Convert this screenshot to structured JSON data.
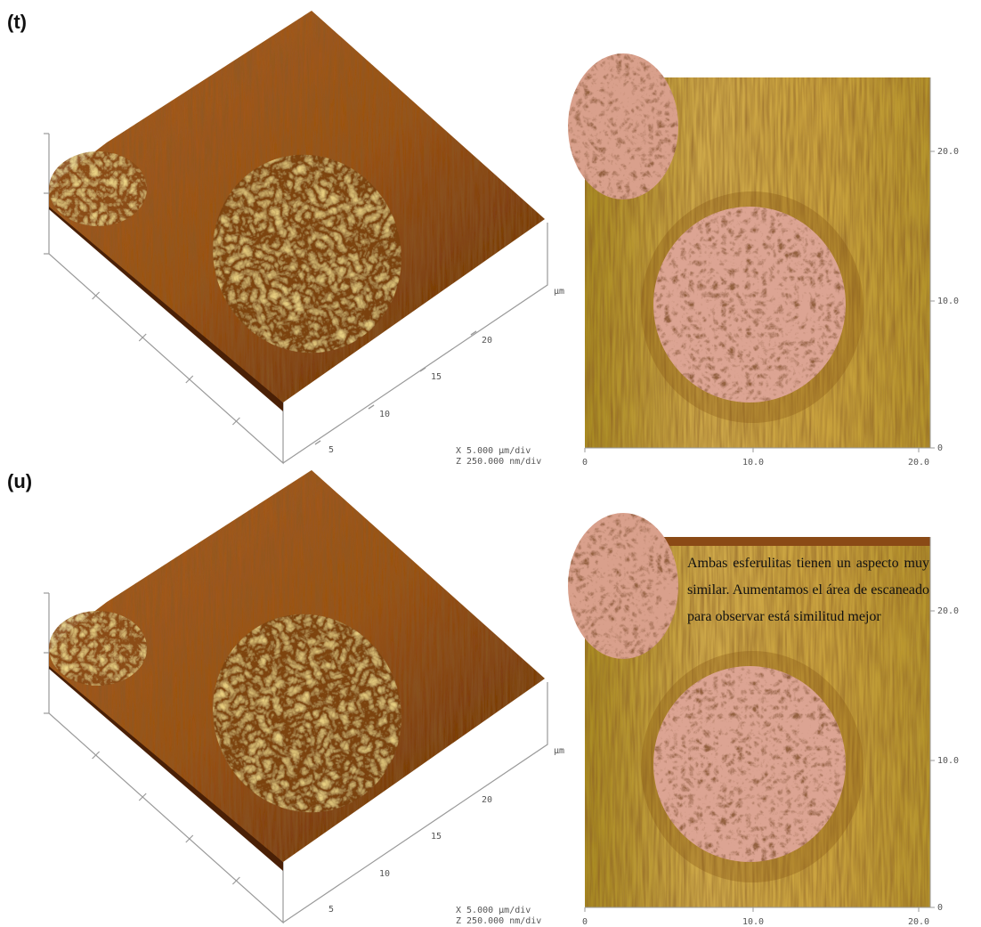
{
  "panels": [
    {
      "label": "(t)",
      "surface": {
        "axis_ticks": [
          "5",
          "10",
          "15",
          "20"
        ],
        "axis_unit": "µm",
        "scale": [
          "X  5.000 µm/div",
          "Z  250.000 nm/div"
        ]
      },
      "image": {
        "x_ticks": [
          "0",
          "10.0",
          "20.0"
        ],
        "y_ticks": [
          "0",
          "10.0",
          "20.0"
        ]
      }
    },
    {
      "label": "(u)",
      "surface": {
        "axis_ticks": [
          "5",
          "10",
          "15",
          "20"
        ],
        "axis_unit": "µm",
        "scale": [
          "X  5.000 µm/div",
          "Z  250.000 nm/div"
        ]
      },
      "image": {
        "x_ticks": [
          "0",
          "10.0",
          "20.0"
        ],
        "y_ticks": [
          "0",
          "10.0",
          "20.0"
        ]
      },
      "note": "Ambas esferulitas tienen un aspecto muy similar. Aumentamos el área de escaneado para observar está similitud mejor"
    }
  ]
}
